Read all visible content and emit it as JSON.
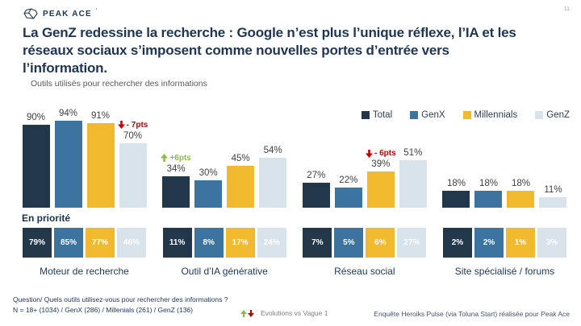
{
  "page": {
    "number": "11"
  },
  "header": {
    "logo_text": "PEAK ACE",
    "logo_mark": "’",
    "title_lines": [
      "La GenZ redessine la recherche : Google n’est plus l’unique réflexe, l’IA et les",
      "réseaux sociaux s’imposent comme nouvelles portes d’entrée vers",
      "l’information."
    ],
    "subtitle": "Outils utilisés pour rechercher des informations"
  },
  "labels": {
    "priority": "En priorité"
  },
  "chart_data": {
    "type": "bar",
    "title": "Outils utilisés pour rechercher des informations",
    "categories": [
      "Moteur de recherche",
      "Outil d’IA générative",
      "Réseau social",
      "Site spécialisé / forums"
    ],
    "series_names": [
      "Total",
      "GenX",
      "Millennials",
      "GenZ"
    ],
    "series_colors": [
      "#22384a",
      "#3d739f",
      "#f0b92e",
      "#d9e3eb"
    ],
    "values": [
      [
        90,
        94,
        91,
        70
      ],
      [
        34,
        30,
        45,
        54
      ],
      [
        27,
        22,
        39,
        51
      ],
      [
        18,
        18,
        18,
        11
      ]
    ],
    "priority_values": [
      [
        "79%",
        "85%",
        "77%",
        "46%"
      ],
      [
        "11%",
        "8%",
        "17%",
        "24%"
      ],
      [
        "7%",
        "5%",
        "6%",
        "27%"
      ],
      [
        "2%",
        "2%",
        "1%",
        "3%"
      ]
    ],
    "annotations": [
      {
        "group": 0,
        "series": 3,
        "text": "- 7pts",
        "direction": "down",
        "color": "#c00000"
      },
      {
        "group": 1,
        "series": 0,
        "text": "+6pts",
        "direction": "up",
        "color": "#8db954"
      },
      {
        "group": 2,
        "series": 2,
        "text": "- 6pts",
        "direction": "down",
        "color": "#c00000"
      }
    ],
    "ylim": [
      0,
      100
    ],
    "grid": false,
    "legend_position": "top-right",
    "value_suffix": "%"
  },
  "footer": {
    "question_line1": "Question/ Quels outils utilisez-vous pour rechercher des informations ?",
    "question_line2": "N = 18+ (1034) / GenX (286) / Millenials (261) / GenZ (136)",
    "evolution_legend": "Evolutions vs Vague 1",
    "up_color": "#8db954",
    "down_color": "#c00000",
    "source": "Enquête Heroiks Pulse (via Toluna Start) réalisée pour Peak Ace"
  }
}
